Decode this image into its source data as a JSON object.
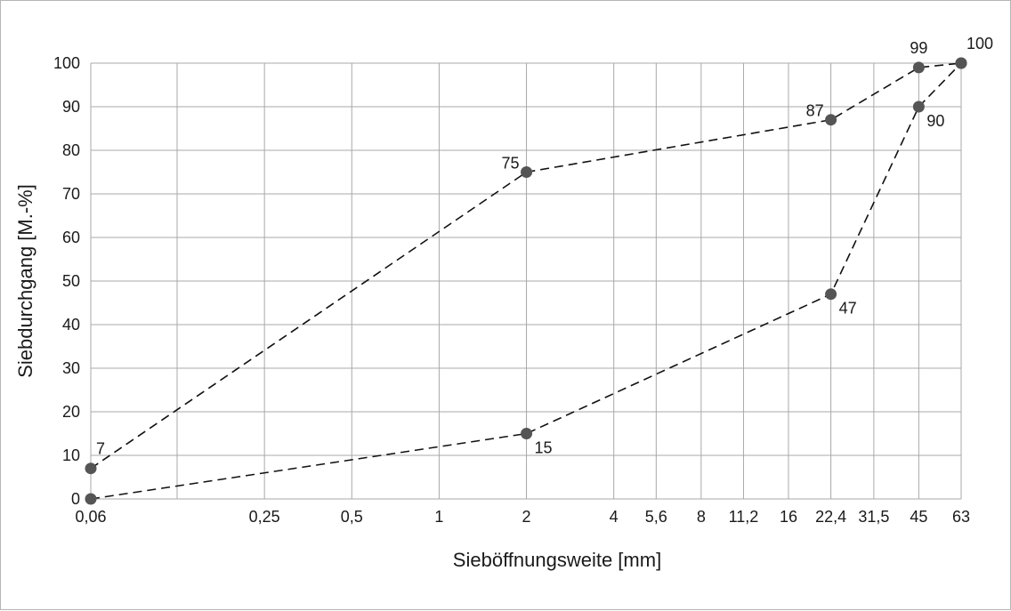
{
  "chart_data": {
    "type": "line",
    "xlabel": "Sieböffnungsweite [mm]",
    "ylabel": "Siebdurchgang [M.-%]",
    "x_scale": "log",
    "x_ticks": [
      {
        "value": 0.063,
        "label": "0,06"
      },
      {
        "value": 0.125,
        "label": ""
      },
      {
        "value": 0.25,
        "label": "0,25"
      },
      {
        "value": 0.5,
        "label": "0,5"
      },
      {
        "value": 1,
        "label": "1"
      },
      {
        "value": 2,
        "label": "2"
      },
      {
        "value": 4,
        "label": "4"
      },
      {
        "value": 5.6,
        "label": "5,6"
      },
      {
        "value": 8,
        "label": "8"
      },
      {
        "value": 11.2,
        "label": "11,2"
      },
      {
        "value": 16,
        "label": "16"
      },
      {
        "value": 22.4,
        "label": "22,4"
      },
      {
        "value": 31.5,
        "label": "31,5"
      },
      {
        "value": 45,
        "label": "45"
      },
      {
        "value": 63,
        "label": "63"
      }
    ],
    "ylim": [
      0,
      100
    ],
    "y_ticks": [
      0,
      10,
      20,
      30,
      40,
      50,
      60,
      70,
      80,
      90,
      100
    ],
    "grid": true,
    "series": [
      {
        "x": [
          0.063,
          2,
          22.4,
          45,
          63
        ],
        "y": [
          7,
          75,
          87,
          99,
          100
        ],
        "labels": [
          "7",
          "75",
          "87",
          "99",
          "100"
        ],
        "label_pos": [
          "above-right",
          "above-left",
          "above-left",
          "above",
          "above-right"
        ]
      },
      {
        "x": [
          0.063,
          2,
          22.4,
          45,
          63
        ],
        "y": [
          0,
          15,
          47,
          90,
          100
        ],
        "labels": [
          "",
          "15",
          "47",
          "90",
          ""
        ],
        "label_pos": [
          "none",
          "below-right",
          "below-right",
          "below-right",
          "none"
        ]
      }
    ]
  }
}
